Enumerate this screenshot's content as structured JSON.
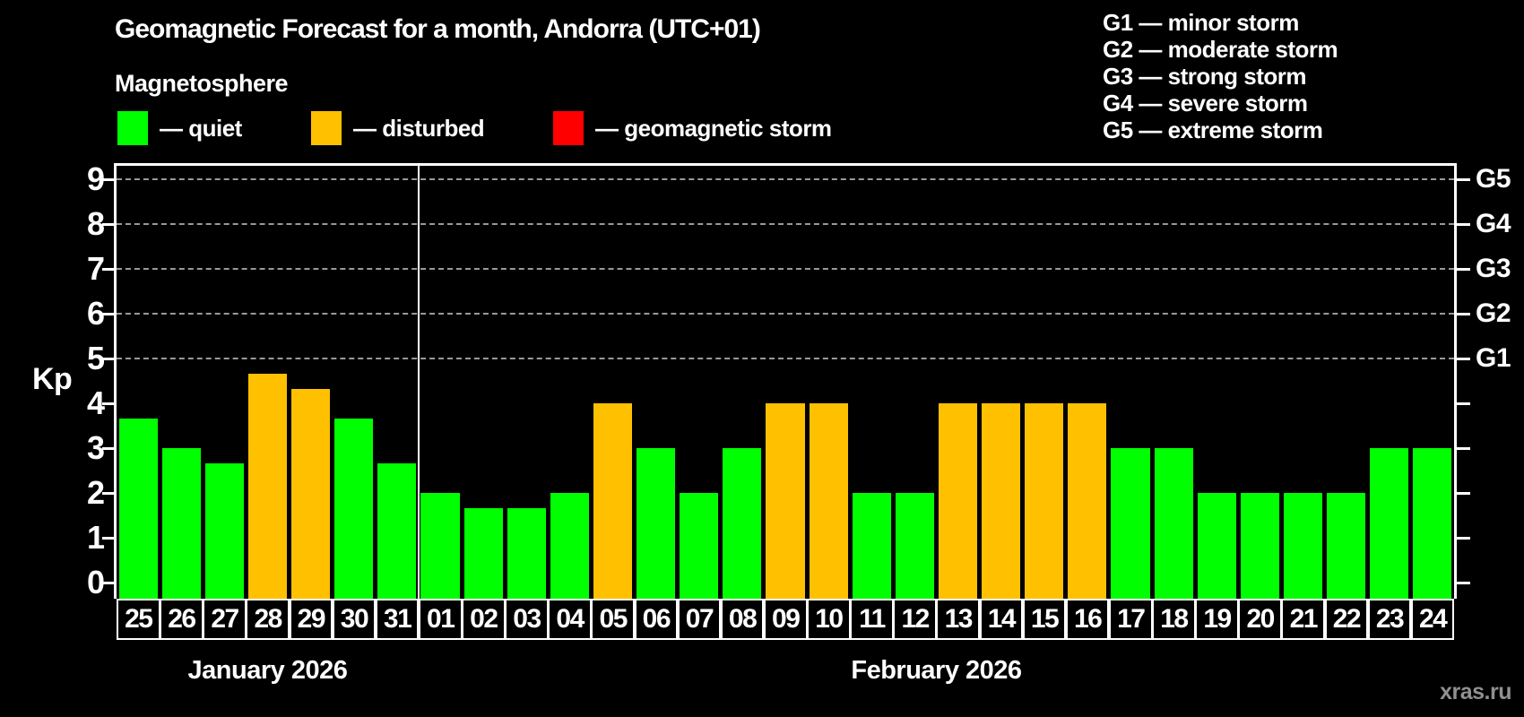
{
  "watermark": "xras.ru",
  "colors": {
    "background": "#000000",
    "quiet": "#00ff00",
    "disturbed": "#ffc000",
    "storm": "#ff0000",
    "grid": "#999999",
    "axis": "#ffffff",
    "text": "#ffffff",
    "watermark": "#909090"
  },
  "legend": {
    "items": [
      {
        "status": "quiet",
        "label": "— quiet",
        "color": "#00ff00"
      },
      {
        "status": "disturbed",
        "label": "— disturbed",
        "color": "#ffc000"
      },
      {
        "status": "storm",
        "label": "— geomagnetic storm",
        "color": "#ff0000"
      }
    ]
  },
  "storm_scale_legend": {
    "lines": [
      "G1 — minor storm",
      "G2 — moderate storm",
      "G3 — strong storm",
      "G4 — severe storm",
      "G5 — extreme storm"
    ]
  },
  "chart_data": {
    "type": "bar",
    "title": "Geomagnetic Forecast for a month, Andorra (UTC+01)",
    "subtitle": "Magnetosphere",
    "ylabel": "Kp",
    "ylim": [
      0,
      9.4
    ],
    "y_ticks": [
      0,
      1,
      2,
      3,
      4,
      5,
      6,
      7,
      8,
      9
    ],
    "grid_levels": [
      5,
      6,
      7,
      8,
      9
    ],
    "grid_on": true,
    "legend_position": "top-left",
    "right_axis_labels": [
      {
        "kp": 5,
        "label": "G1"
      },
      {
        "kp": 6,
        "label": "G2"
      },
      {
        "kp": 7,
        "label": "G3"
      },
      {
        "kp": 8,
        "label": "G4"
      },
      {
        "kp": 9,
        "label": "G5"
      }
    ],
    "months": [
      {
        "label": "January 2026",
        "days": [
          "25",
          "26",
          "27",
          "28",
          "29",
          "30",
          "31"
        ]
      },
      {
        "label": "February 2026",
        "days": [
          "01",
          "02",
          "03",
          "04",
          "05",
          "06",
          "07",
          "08",
          "09",
          "10",
          "11",
          "12",
          "13",
          "14",
          "15",
          "16",
          "17",
          "18",
          "19",
          "20",
          "21",
          "22",
          "23",
          "24"
        ]
      }
    ],
    "points": [
      {
        "day": "25",
        "kp": 3.67,
        "status": "quiet"
      },
      {
        "day": "26",
        "kp": 3.0,
        "status": "quiet"
      },
      {
        "day": "27",
        "kp": 2.67,
        "status": "quiet"
      },
      {
        "day": "28",
        "kp": 4.67,
        "status": "disturbed"
      },
      {
        "day": "29",
        "kp": 4.33,
        "status": "disturbed"
      },
      {
        "day": "30",
        "kp": 3.67,
        "status": "quiet"
      },
      {
        "day": "31",
        "kp": 2.67,
        "status": "quiet"
      },
      {
        "day": "01",
        "kp": 2.0,
        "status": "quiet"
      },
      {
        "day": "02",
        "kp": 1.67,
        "status": "quiet"
      },
      {
        "day": "03",
        "kp": 1.67,
        "status": "quiet"
      },
      {
        "day": "04",
        "kp": 2.0,
        "status": "quiet"
      },
      {
        "day": "05",
        "kp": 4.0,
        "status": "disturbed"
      },
      {
        "day": "06",
        "kp": 3.0,
        "status": "quiet"
      },
      {
        "day": "07",
        "kp": 2.0,
        "status": "quiet"
      },
      {
        "day": "08",
        "kp": 3.0,
        "status": "quiet"
      },
      {
        "day": "09",
        "kp": 4.0,
        "status": "disturbed"
      },
      {
        "day": "10",
        "kp": 4.0,
        "status": "disturbed"
      },
      {
        "day": "11",
        "kp": 2.0,
        "status": "quiet"
      },
      {
        "day": "12",
        "kp": 2.0,
        "status": "quiet"
      },
      {
        "day": "13",
        "kp": 4.0,
        "status": "disturbed"
      },
      {
        "day": "14",
        "kp": 4.0,
        "status": "disturbed"
      },
      {
        "day": "15",
        "kp": 4.0,
        "status": "disturbed"
      },
      {
        "day": "16",
        "kp": 4.0,
        "status": "disturbed"
      },
      {
        "day": "17",
        "kp": 3.0,
        "status": "quiet"
      },
      {
        "day": "18",
        "kp": 3.0,
        "status": "quiet"
      },
      {
        "day": "19",
        "kp": 2.0,
        "status": "quiet"
      },
      {
        "day": "20",
        "kp": 2.0,
        "status": "quiet"
      },
      {
        "day": "21",
        "kp": 2.0,
        "status": "quiet"
      },
      {
        "day": "22",
        "kp": 2.0,
        "status": "quiet"
      },
      {
        "day": "23",
        "kp": 3.0,
        "status": "quiet"
      },
      {
        "day": "24",
        "kp": 3.0,
        "status": "quiet"
      }
    ]
  }
}
